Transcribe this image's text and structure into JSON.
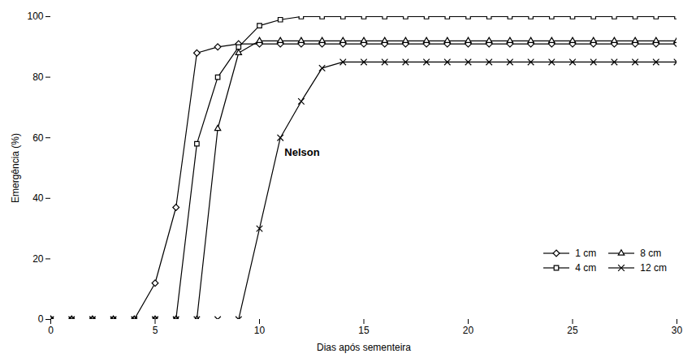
{
  "chart_data": {
    "type": "line",
    "xlabel": "Dias após sementeira",
    "ylabel": "Emergência (%)",
    "xlim": [
      0,
      30
    ],
    "ylim": [
      0,
      100
    ],
    "xticks": [
      0,
      5,
      10,
      15,
      20,
      25,
      30
    ],
    "yticks": [
      0,
      20,
      40,
      60,
      80,
      100
    ],
    "x": [
      0,
      1,
      2,
      3,
      4,
      5,
      6,
      7,
      8,
      9,
      10,
      11,
      12,
      13,
      14,
      15,
      16,
      17,
      18,
      19,
      20,
      21,
      22,
      23,
      24,
      25,
      26,
      27,
      28,
      29,
      30
    ],
    "series": [
      {
        "name": "1 cm",
        "color": "#000000",
        "marker": "diamond",
        "values": [
          0,
          0,
          0,
          0,
          0,
          12,
          37,
          88,
          90,
          91,
          91,
          91,
          91,
          91,
          91,
          91,
          91,
          91,
          91,
          91,
          91,
          91,
          91,
          91,
          91,
          91,
          91,
          91,
          91,
          91,
          91
        ]
      },
      {
        "name": "4 cm",
        "color": "#000000",
        "marker": "square",
        "values": [
          0,
          0,
          0,
          0,
          0,
          0,
          0,
          58,
          80,
          90,
          97,
          99,
          100,
          100,
          100,
          100,
          100,
          100,
          100,
          100,
          100,
          100,
          100,
          100,
          100,
          100,
          100,
          100,
          100,
          100,
          100
        ]
      },
      {
        "name": "8 cm",
        "color": "#000000",
        "marker": "triangle",
        "values": [
          0,
          0,
          0,
          0,
          0,
          0,
          0,
          0,
          63,
          88,
          92,
          92,
          92,
          92,
          92,
          92,
          92,
          92,
          92,
          92,
          92,
          92,
          92,
          92,
          92,
          92,
          92,
          92,
          92,
          92,
          92
        ]
      },
      {
        "name": "12 cm",
        "color": "#000000",
        "marker": "x",
        "values": [
          0,
          0,
          0,
          0,
          0,
          0,
          0,
          0,
          0,
          0,
          30,
          60,
          72,
          83,
          85,
          85,
          85,
          85,
          85,
          85,
          85,
          85,
          85,
          85,
          85,
          85,
          85,
          85,
          85,
          85,
          85
        ]
      }
    ],
    "annotations": [
      {
        "text": "Nelson",
        "x": 11.2,
        "y": 54
      }
    ],
    "legend": "lower right",
    "grid": false
  }
}
